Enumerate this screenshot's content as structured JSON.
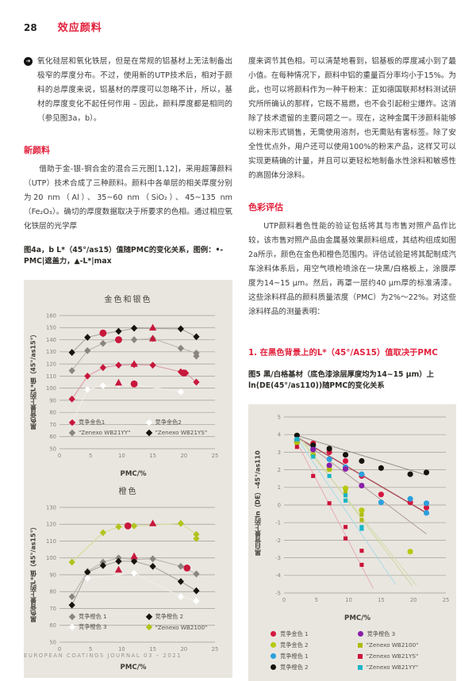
{
  "colors": {
    "accent": "#e2203c",
    "panel_bg": "#e9e6e0",
    "grid": "#a29d93",
    "tick": "#8a857c",
    "text": "#3c3c3c",
    "footer_text": "#9a958e"
  },
  "page": {
    "number": "28",
    "section": "效应颜料",
    "footer": "EUROPEAN COATINGS JOURNAL 03 – 2021"
  },
  "left_column": {
    "paragraph1": "氧化硅层和氧化铁层，但是在常规的铝基材上无法制备出极窄的厚度分布。不过，使用新的UTP技术后，相对于颜料的总厚度来说，铝基材的厚度可以忽略不计，所以，基材的厚度变化不起任何作用 – 因此，颜料厚度都是相同的（参见图3a，b）。",
    "heading1": "新颜料",
    "paragraph2": "借助于金-银-铜合金的混合三元图[1,12]，采用超薄颜料（UTP）技术合成了三种颜料。颜料中各单层的相关厚度分别为20 nm（Al）、35~60 nm（SiO₂）、45~135 nm（Fe₂O₃）。确切的厚度数据取决于所要求的色相。通过相应氧化铁层的光学厚",
    "fig4_caption": "图4a，b L*（45°/as15）值随PMC的变化关系，图例：•-PMC|遮盖力，▲-L*|max"
  },
  "right_column": {
    "paragraph1": "度来调节其色相。可以清楚地看到，铝基板的厚度减小到了最小值。在每种情况下，颜料中铝的重量百分率均小于15%。为此，也可以将颜料作为一种干粉末：正如德国联邦材料测试研究所所确认的那样，它既不易燃，也不会引起粉尘爆炸。这消除了技术遗留的主要问题之一。现在，这种金属干涉颜料能够以粉末形式销售，无需使用溶剂，也无需贴有害标签。除了安全性优点外，用户还可以使用100%的粉末产品，这样又可以实现更精确的计量，并且可以更轻松地制备水性涂料和敏感性的高固体分涂料。",
    "heading1": "色彩评估",
    "paragraph2": "UTP颜料着色性能的验证包括将其与市售对照产品作比较，该市售对照产品由金属基效果颜料组成，其结构组成如图2a所示，颜色在金色和橙色范围内。评估试验是将其配制成汽车涂料体系后，用空气喷枪喷涂在一块黑/白格板上，涂膜厚度为14~15 μm。然后，再罩一层约40 μm厚的标准清漆。这些涂料样品的颜料质量浓度（PMC）为2%～22%。对这些涂料样品的测量表明：",
    "heading2": "1. 在黑色背景上的L*（45°/AS15）值取决于PMC",
    "fig5_caption": "图5 黑/白格基材（底色漆涂层厚度均为14~15 μm）上 ln(DE(45°/as110))随PMC的变化关系"
  },
  "chart_data": [
    {
      "type": "scatter",
      "title": "金色和银色",
      "ylabel": "黑色背景上的L*值（45°/as15°）",
      "xlabel": "PMC/%",
      "xlim": [
        0,
        25
      ],
      "xtick_step": 5,
      "ylim": [
        50,
        160
      ],
      "ytick_step": 10,
      "grid": "on",
      "legend_position": "inside-bottom",
      "series": [
        {
          "name": "竞争金色1",
          "marker": "diamond",
          "color": "#c8173c",
          "line": "#d89aa5",
          "points": [
            [
              2,
              91
            ],
            [
              4.5,
              110
            ],
            [
              7,
              117
            ],
            [
              9.5,
              119
            ],
            [
              12,
              119.5
            ],
            [
              15,
              119
            ],
            [
              19.5,
              113.5
            ],
            [
              20.3,
              112.5
            ],
            [
              22,
              105
            ]
          ]
        },
        {
          "name": "竞争金色2",
          "marker": "diamond",
          "color": "#ffffff",
          "line": "#f0ede7",
          "points": [
            [
              2,
              72
            ],
            [
              4.5,
              99
            ],
            [
              7,
              102
            ],
            [
              9.5,
              103
            ],
            [
              12,
              103
            ],
            [
              19.5,
              97
            ]
          ]
        },
        {
          "name": "\"Zenexo WB21YY\"",
          "marker": "diamond",
          "color": "#8a857e",
          "line": "#b9b5ad",
          "points": [
            [
              2,
              114.5
            ],
            [
              4.5,
              131
            ],
            [
              7,
              137
            ],
            [
              9.5,
              140
            ],
            [
              12,
              140
            ],
            [
              15,
              141
            ],
            [
              19.5,
              133
            ],
            [
              22,
              129
            ],
            [
              22,
              126.5
            ]
          ]
        },
        {
          "name": "\"Zenexo WB21YS\"",
          "marker": "diamond",
          "color": "#16130f",
          "line": "#a8a49c",
          "points": [
            [
              2,
              129.5
            ],
            [
              4.5,
              142
            ],
            [
              7,
              145
            ],
            [
              9.5,
              147
            ],
            [
              12,
              149.5
            ],
            [
              19.5,
              149
            ],
            [
              22,
              142.5
            ]
          ]
        }
      ],
      "annotations": [
        {
          "name": "PMC|遮盖力",
          "marker": "circle",
          "color": "#c8173c",
          "points": [
            [
              7,
              145.5
            ],
            [
              9.5,
              140
            ],
            [
              12,
              103.5
            ],
            [
              20,
              112.5
            ]
          ]
        },
        {
          "name": "L*|max",
          "marker": "triangle",
          "color": "#c8173c",
          "points": [
            [
              9.5,
              104.5
            ],
            [
              12,
              120
            ],
            [
              15,
              141
            ],
            [
              15,
              150
            ]
          ]
        }
      ]
    },
    {
      "type": "scatter",
      "title": "橙色",
      "ylabel": "黑色背景上的L*值（45°/as15°）",
      "xlabel": "PMC/%",
      "xlim": [
        0,
        25
      ],
      "xtick_step": 5,
      "ylim": [
        50,
        130
      ],
      "ytick_step": 10,
      "grid": "on",
      "legend_position": "inside-bottom",
      "series": [
        {
          "name": "竞争橙色 1",
          "marker": "diamond",
          "color": "#8a857e",
          "line": "#b9b5ad",
          "points": [
            [
              2,
              77
            ],
            [
              4.5,
              92
            ],
            [
              7,
              97.5
            ],
            [
              9.5,
              100
            ],
            [
              12,
              99
            ],
            [
              15,
              99.5
            ],
            [
              19.5,
              95
            ],
            [
              22,
              90.5
            ]
          ]
        },
        {
          "name": "竞争橙色 2",
          "marker": "diamond",
          "color": "#16130f",
          "line": "#a8a49c",
          "points": [
            [
              2,
              72
            ],
            [
              4.5,
              91.5
            ],
            [
              7,
              95.5
            ],
            [
              9.5,
              98
            ],
            [
              12,
              98
            ],
            [
              15,
              95
            ],
            [
              19.5,
              86
            ],
            [
              22,
              80.5
            ]
          ]
        },
        {
          "name": "竞争橙色 3",
          "marker": "diamond",
          "color": "#ffffff",
          "line": "#f0ede7",
          "points": [
            [
              4.5,
              88
            ],
            [
              12,
              91
            ],
            [
              19.5,
              77
            ],
            [
              22,
              74.5
            ]
          ]
        },
        {
          "name": "\"Zenexo WB2100\"",
          "marker": "diamond",
          "color": "#b2c41c",
          "line": "#d3dc96",
          "points": [
            [
              2,
              97.5
            ],
            [
              7,
              115
            ],
            [
              9.5,
              118.5
            ],
            [
              12,
              119
            ],
            [
              19.5,
              120.5
            ],
            [
              22,
              114
            ],
            [
              22,
              111.5
            ]
          ]
        }
      ],
      "annotations": [
        {
          "name": "PMC|遮盖力",
          "marker": "circle",
          "color": "#c8173c",
          "points": [
            [
              11,
              119
            ],
            [
              20.5,
              94
            ]
          ]
        },
        {
          "name": "L*|max",
          "marker": "triangle",
          "color": "#c8173c",
          "points": [
            [
              9.5,
              93
            ],
            [
              12,
              101
            ],
            [
              15,
              120.5
            ]
          ]
        }
      ]
    },
    {
      "type": "scatter",
      "title": "",
      "ylabel": "黑白背景上的ln（DE）-45°/as110",
      "xlabel": "PMC/%",
      "xlim": [
        0,
        25
      ],
      "xtick_step": 5,
      "ylim": [
        -5,
        5
      ],
      "ytick_step": 1,
      "grid": "on",
      "legend_position": "below",
      "series": [
        {
          "name": "竞争金色 1",
          "marker": "circle",
          "color": "#d6173f",
          "msize": 0.85,
          "trend": [
            [
              2,
              3.85
            ],
            [
              22,
              -0.45
            ]
          ],
          "trend_color": "#a84a55",
          "trend_width": 1.4,
          "points": [
            [
              2,
              3.6
            ],
            [
              4.5,
              3.5
            ],
            [
              7,
              3.0
            ],
            [
              9.5,
              2.5
            ],
            [
              12,
              1.65
            ],
            [
              15,
              0.6
            ],
            [
              19.5,
              0.15
            ],
            [
              22,
              -0.15
            ]
          ]
        },
        {
          "name": "竞争金色 2",
          "marker": "circle",
          "color": "#b8c912",
          "msize": 0.85,
          "trend": [
            [
              2.5,
              3.7
            ],
            [
              20.5,
              -4.6
            ]
          ],
          "trend_color": "#d3dcab",
          "trend_width": 1,
          "points": [
            [
              2,
              3.55
            ],
            [
              4.5,
              2.85
            ],
            [
              7,
              2.05
            ],
            [
              9.5,
              0.95
            ],
            [
              12,
              -0.3
            ],
            [
              19.5,
              -2.65
            ]
          ]
        },
        {
          "name": "竞争橙色 1",
          "marker": "circle",
          "color": "#2ba0dc",
          "msize": 0.85,
          "trend": [
            [
              2,
              3.9
            ],
            [
              22,
              -1.65
            ]
          ],
          "trend_color": "#b09a98",
          "trend_width": 1,
          "points": [
            [
              2,
              3.7
            ],
            [
              4.5,
              3.2
            ],
            [
              7,
              2.6
            ],
            [
              9.5,
              2.15
            ],
            [
              12,
              1.75
            ],
            [
              15,
              0.15
            ],
            [
              19.5,
              0.35
            ],
            [
              22,
              0.1
            ],
            [
              22,
              -0.45
            ]
          ]
        },
        {
          "name": "竞争橙色 2",
          "marker": "circle",
          "color": "#16130f",
          "msize": 0.85,
          "trend": [
            [
              2,
              3.95
            ],
            [
              22,
              1.7
            ]
          ],
          "trend_color": "#908c85",
          "trend_width": 1,
          "points": [
            [
              2,
              3.95
            ],
            [
              4.5,
              3.4
            ],
            [
              7,
              3.2
            ],
            [
              9.5,
              2.85
            ],
            [
              12,
              2.5
            ],
            [
              15,
              2.1
            ],
            [
              19.5,
              1.75
            ],
            [
              22,
              1.85
            ]
          ]
        },
        {
          "name": "竞争橙色 3",
          "marker": "circle",
          "color": "#8a1fa8",
          "msize": 0.85,
          "points": [
            [
              4.5,
              3.15
            ],
            [
              7,
              2.25
            ],
            [
              9.5,
              2.05
            ],
            [
              12,
              1.1
            ]
          ]
        },
        {
          "name": "\"Zenexo WB2100\"",
          "marker": "square",
          "color": "#aebc0f",
          "msize": 0.85,
          "trend": [
            [
              3,
              3.6
            ],
            [
              19.8,
              -4.6
            ]
          ],
          "trend_color": "#ccd79c",
          "trend_width": 1,
          "points": [
            [
              2,
              3.5
            ],
            [
              4.5,
              2.8
            ],
            [
              7,
              2.0
            ],
            [
              9.5,
              0.75
            ],
            [
              12,
              -0.55
            ],
            [
              12,
              -0.85
            ]
          ]
        },
        {
          "name": "\"Zenexo WB21YS\"",
          "marker": "square",
          "color": "#cc1438",
          "msize": 0.85,
          "trend": [
            [
              2,
              3.55
            ],
            [
              13.8,
              -4.75
            ]
          ],
          "trend_color": "#e6a9b4",
          "trend_width": 1,
          "points": [
            [
              2,
              3.3
            ],
            [
              4.5,
              1.65
            ],
            [
              7,
              0.1
            ],
            [
              9.5,
              -1.25
            ],
            [
              9.5,
              -1.9
            ],
            [
              12,
              -2.6
            ],
            [
              12,
              -3.4
            ]
          ]
        },
        {
          "name": "\"Zenexo WB21YY\"",
          "marker": "square",
          "color": "#19b5c8",
          "msize": 0.85,
          "trend": [
            [
              2,
              3.8
            ],
            [
              17.2,
              -4.5
            ]
          ],
          "trend_color": "#a8dbe8",
          "trend_width": 1,
          "points": [
            [
              2,
              3.75
            ],
            [
              4.5,
              2.75
            ],
            [
              7,
              1.65
            ],
            [
              9.5,
              0.55
            ],
            [
              9.5,
              0.25
            ],
            [
              12,
              -1.25
            ],
            [
              12,
              -1.35
            ]
          ]
        }
      ],
      "annotations": []
    }
  ]
}
